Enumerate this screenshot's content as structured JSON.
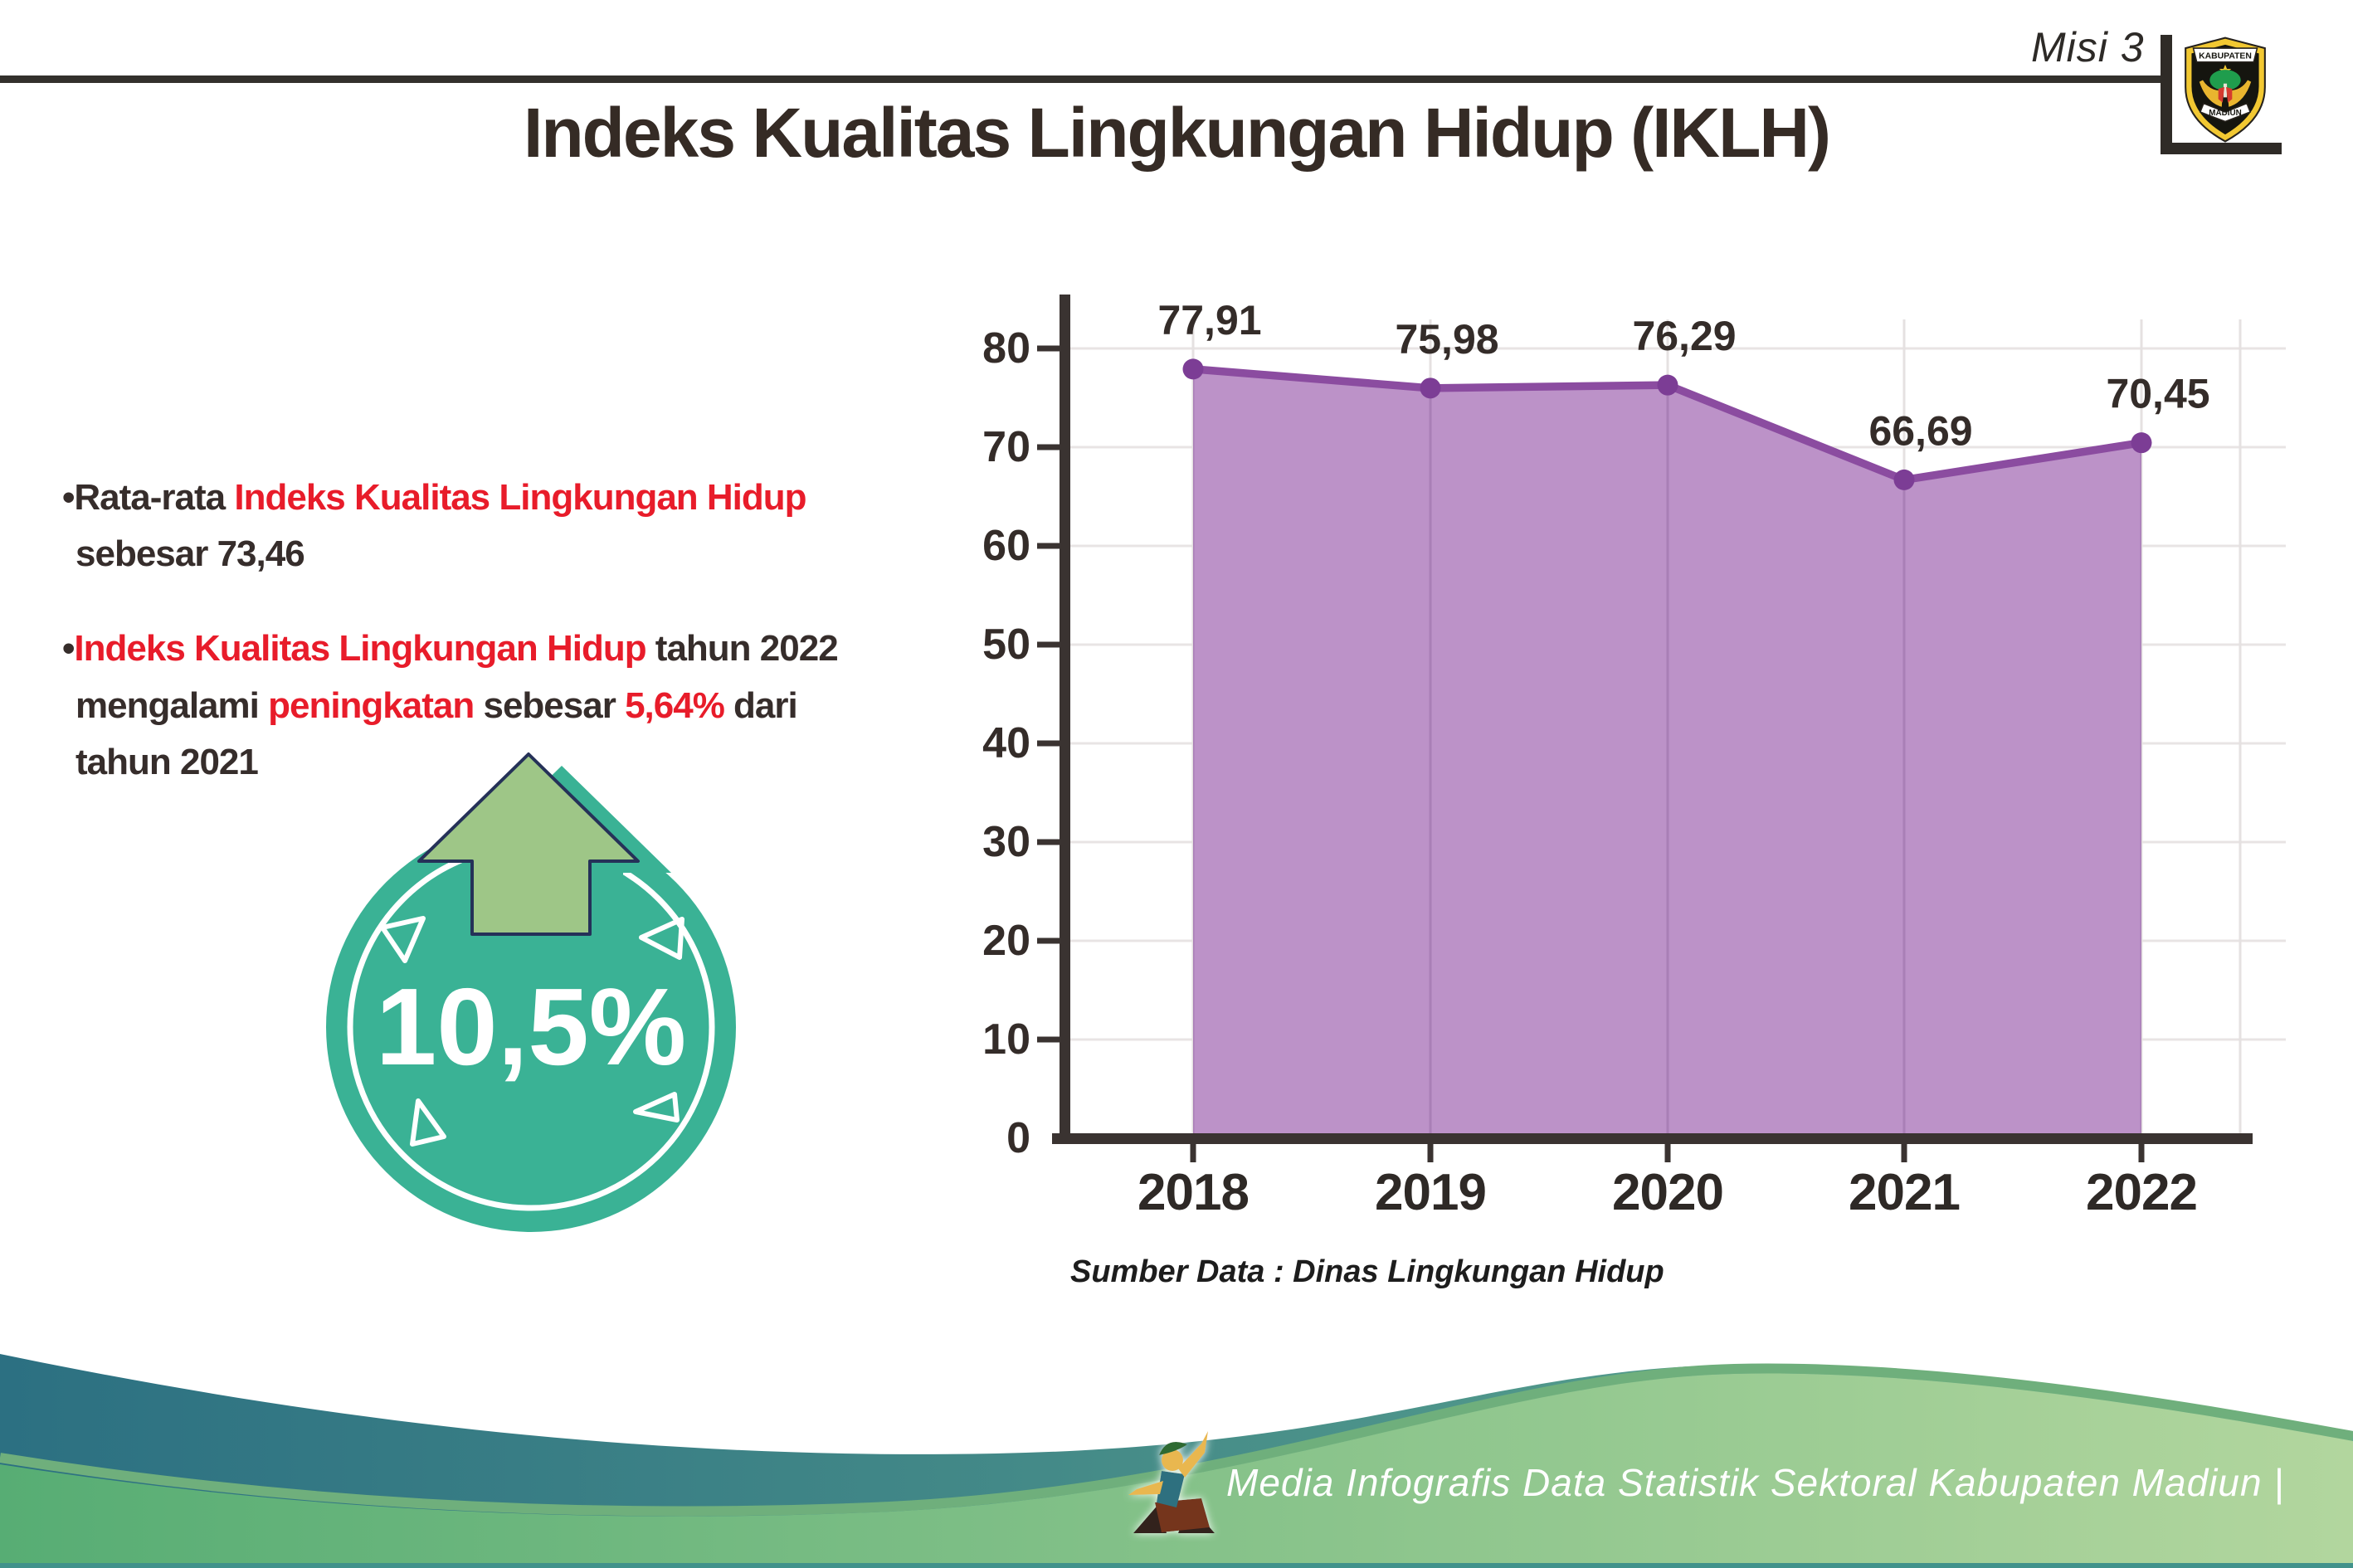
{
  "header": {
    "misi": "Misi 3",
    "logo": {
      "top_text": "KABUPATEN",
      "bottom_text": "MADIUN"
    }
  },
  "title": "Indeks Kualitas Lingkungan Hidup (IKLH)",
  "insights": {
    "bullet1": {
      "segments": [
        {
          "text": "•Rata-rata ",
          "cls": "dark"
        },
        {
          "text": "Indeks Kualitas Lingkungan Hidup",
          "cls": "red"
        },
        {
          "text": "sebesar 73,46",
          "cls": "dark"
        }
      ]
    },
    "bullet2": {
      "segments": [
        {
          "text": "•",
          "cls": "dark"
        },
        {
          "text": "Indeks Kualitas Lingkungan Hidup",
          "cls": "red"
        },
        {
          "text": " tahun 2022",
          "cls": "dark"
        },
        {
          "text": "mengalami ",
          "cls": "dark"
        },
        {
          "text": "peningkatan",
          "cls": "red"
        },
        {
          "text": " sebesar ",
          "cls": "dark"
        },
        {
          "text": "5,64%",
          "cls": "red"
        },
        {
          "text": " dari",
          "cls": "dark"
        },
        {
          "text": "tahun 2021",
          "cls": "dark"
        }
      ]
    }
  },
  "badge": {
    "value": "10,5%"
  },
  "chart_data": {
    "type": "area",
    "categories": [
      "2018",
      "2019",
      "2020",
      "2021",
      "2022"
    ],
    "values": [
      77.91,
      75.98,
      76.29,
      66.69,
      70.45
    ],
    "value_labels": [
      "77,91",
      "75,98",
      "76,29",
      "66,69",
      "70,45"
    ],
    "title": "",
    "xlabel": "",
    "ylabel": "",
    "ylim": [
      0,
      80
    ],
    "ytick_step": 10,
    "grid": true,
    "legend": false,
    "area_fill": "#bc92c8",
    "line_color": "#8b4ca0",
    "marker_color": "#7c3d95"
  },
  "source": "Sumber Data : Dinas Lingkungan Hidup",
  "footer": {
    "caption": "Media Infografis Data Statistik Sektoral Kabupaten Madiun |"
  },
  "colors": {
    "accent_red": "#e81c2a",
    "badge_teal": "#3ab295",
    "arrow_green": "#9ec687",
    "arrow_outline_navy": "#253158",
    "axis_dark": "#3a3331",
    "gridline": "#e8e4e4"
  }
}
